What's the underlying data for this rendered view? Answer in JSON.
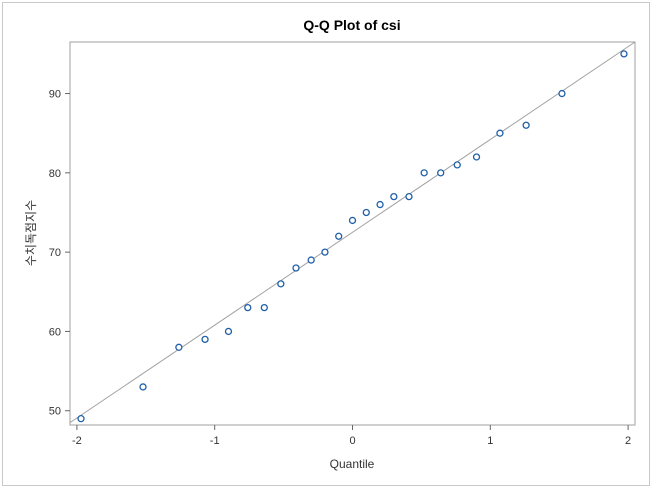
{
  "chart_data": {
    "type": "scatter",
    "title": "Q-Q Plot of csi",
    "xlabel": "Quantile",
    "ylabel": "수치독점지수",
    "xlim": [
      -2.05,
      2.05
    ],
    "ylim": [
      48.2,
      96.5
    ],
    "xticks": [
      -2,
      -1,
      0,
      1,
      2
    ],
    "yticks": [
      50,
      60,
      70,
      80,
      90
    ],
    "grid": false,
    "marker_color": "#1f5fa8",
    "reference_line_color": "#a0a0a0",
    "reference_line": {
      "x": [
        -2.05,
        2.05
      ],
      "y": [
        48.5,
        96.5
      ]
    },
    "points": {
      "x": [
        -1.97,
        -1.52,
        -1.26,
        -1.07,
        -0.9,
        -0.76,
        -0.64,
        -0.52,
        -0.41,
        -0.3,
        -0.2,
        -0.1,
        0.0,
        0.1,
        0.2,
        0.3,
        0.41,
        0.52,
        0.64,
        0.76,
        0.9,
        1.07,
        1.26,
        1.52,
        1.97
      ],
      "y": [
        49,
        53,
        58,
        59,
        60,
        63,
        63,
        66,
        68,
        69,
        70,
        72,
        74,
        75,
        76,
        77,
        77,
        80,
        80,
        81,
        82,
        85,
        86,
        90,
        95
      ]
    }
  }
}
